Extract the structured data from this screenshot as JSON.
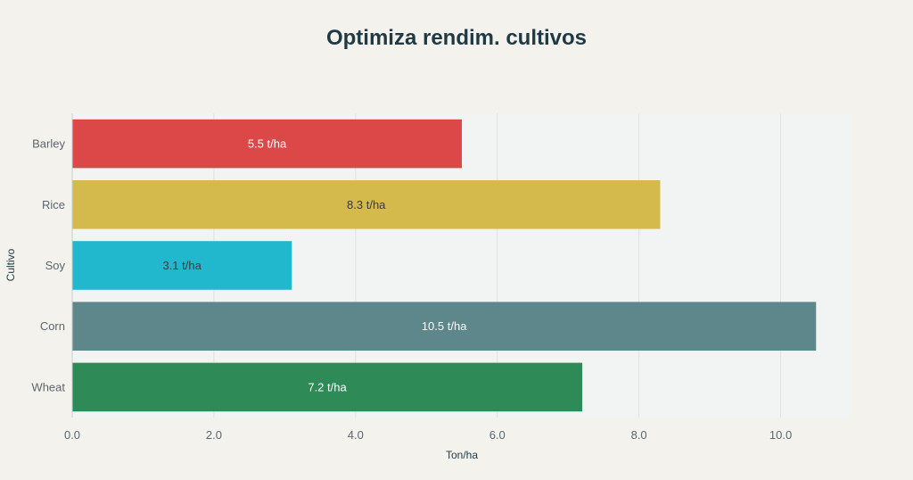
{
  "chart_data": {
    "type": "bar",
    "orientation": "horizontal",
    "title": "Optimiza rendim. cultivos",
    "xlabel": "Ton/ha",
    "ylabel": "Cultivo",
    "categories": [
      "Barley",
      "Rice",
      "Soy",
      "Corn",
      "Wheat"
    ],
    "values": [
      5.5,
      8.3,
      3.1,
      10.5,
      7.2
    ],
    "data_labels": [
      "5.5 t/ha",
      "8.3 t/ha",
      "3.1 t/ha",
      "10.5 t/ha",
      "7.2 t/ha"
    ],
    "bar_colors": [
      "#dc4848",
      "#d4b94d",
      "#21b7cd",
      "#5e878c",
      "#2e8b57"
    ],
    "label_colors": [
      "#ffffff",
      "#3a3a3a",
      "#3a3a3a",
      "#ffffff",
      "#ffffff"
    ],
    "xlim": [
      0,
      11
    ],
    "xticks": [
      0,
      2,
      4,
      6,
      8,
      10
    ],
    "xtick_labels": [
      "0.0",
      "2.0",
      "4.0",
      "6.0",
      "8.0",
      "10.0"
    ],
    "grid": true,
    "legend": "none",
    "plot_background": "#f1f4f2",
    "page_background": "#f3f2ed"
  }
}
